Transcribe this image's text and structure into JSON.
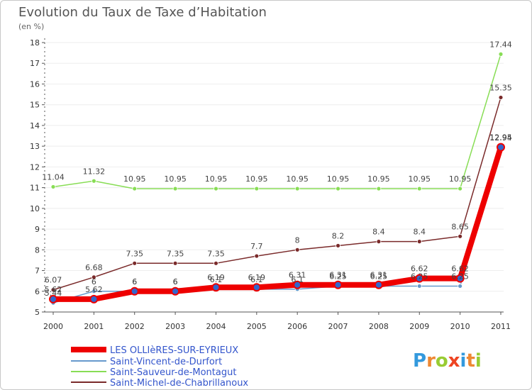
{
  "chart_data": {
    "type": "line",
    "title": "Evolution du Taux de Taxe d’Habitation",
    "subtitle": "(en %)",
    "xlabel": "",
    "ylabel": "",
    "ylim": [
      5,
      18
    ],
    "categories": [
      "2000",
      "2001",
      "2002",
      "2003",
      "2004",
      "2005",
      "2006",
      "2007",
      "2008",
      "2009",
      "2010",
      "2011"
    ],
    "yticks": [
      "5",
      "6",
      "7",
      "8",
      "9",
      "10",
      "11",
      "12",
      "13",
      "14",
      "15",
      "16",
      "17",
      "18"
    ],
    "series": [
      {
        "name": "Saint-Sauveur-de-Montagut",
        "color": "#88dd55",
        "values": [
          11.04,
          11.32,
          10.95,
          10.95,
          10.95,
          10.95,
          10.95,
          10.95,
          10.95,
          10.95,
          10.95,
          17.44
        ],
        "labels": [
          "11.04",
          "11.32",
          "10.95",
          "10.95",
          "10.95",
          "10.95",
          "10.95",
          "10.95",
          "10.95",
          "10.95",
          "10.95",
          "17.44"
        ]
      },
      {
        "name": "Saint-Michel-de-Chabrillanoux",
        "color": "#7a2a2a",
        "values": [
          6.07,
          6.68,
          7.35,
          7.35,
          7.35,
          7.7,
          8,
          8.2,
          8.4,
          8.4,
          8.65,
          15.35
        ],
        "labels": [
          "6.07",
          "6.68",
          "7.35",
          "7.35",
          "7.35",
          "7.7",
          "8",
          "8.2",
          "8.4",
          "8.4",
          "8.65",
          "15.35"
        ]
      },
      {
        "name": "Saint-Vincent-de-Durfort",
        "color": "#6699cc",
        "values": [
          5.44,
          6.0,
          6.0,
          6.0,
          6.1,
          6.1,
          6.1,
          6.25,
          6.25,
          6.25,
          6.25,
          12.94
        ],
        "labels": [
          "5.44",
          "6",
          "6",
          "6",
          "6.1",
          "6.1",
          "6.1",
          "6.25",
          "6.25",
          "6.25",
          "6.25",
          "12.94"
        ]
      },
      {
        "name": "LES OLLIèRES-SUR-EYRIEUX",
        "color": "#ee0000",
        "values": [
          5.62,
          5.62,
          6,
          6,
          6.19,
          6.19,
          6.31,
          6.31,
          6.31,
          6.62,
          6.62,
          12.95
        ],
        "labels": [
          "5.62",
          "5.62",
          "6",
          "6",
          "6.19",
          "6.19",
          "6.31",
          "6.31",
          "6.31",
          "6.62",
          "6.62",
          "12.95"
        ]
      }
    ],
    "legend": [
      {
        "name": "LES OLLIèRES-SUR-EYRIEUX",
        "color": "#ee0000"
      },
      {
        "name": "Saint-Vincent-de-Durfort",
        "color": "#6699cc"
      },
      {
        "name": "Saint-Sauveur-de-Montagut",
        "color": "#88dd55"
      },
      {
        "name": "Saint-Michel-de-Chabrillanoux",
        "color": "#7a2a2a"
      }
    ],
    "legend_position": "bottom-left"
  },
  "brand": {
    "logo_letters": [
      "P",
      "r",
      "o",
      "x",
      "i",
      "t",
      "i"
    ],
    "logo_colors": [
      "#3399dd",
      "#ee8833",
      "#99cc33",
      "#ee4422",
      "#3399dd",
      "#ee8833",
      "#99cc33"
    ]
  }
}
